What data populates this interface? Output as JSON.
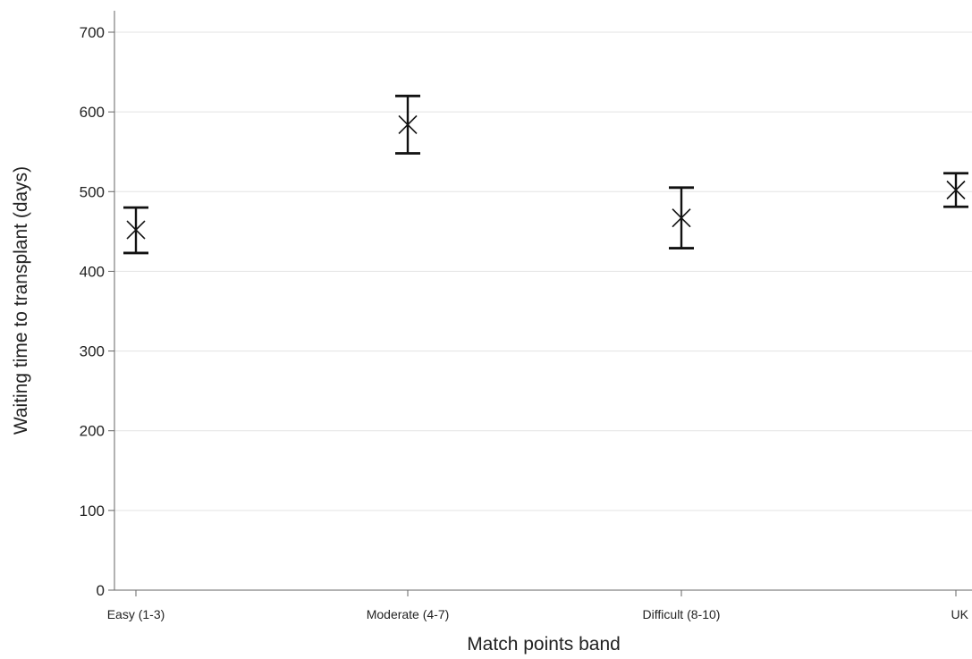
{
  "chart_data": {
    "type": "scatter",
    "title": "",
    "xlabel": "Match points band",
    "ylabel": "Waiting time to transplant (days)",
    "categories": [
      "Easy (1-3)",
      "Moderate (4-7)",
      "Difficult (8-10)",
      "UK"
    ],
    "points": [
      {
        "category": "Easy (1-3)",
        "estimate": 452,
        "lower": 423,
        "upper": 480
      },
      {
        "category": "Moderate (4-7)",
        "estimate": 584,
        "lower": 548,
        "upper": 620
      },
      {
        "category": "Difficult (8-10)",
        "estimate": 467,
        "lower": 429,
        "upper": 505
      },
      {
        "category": "UK",
        "estimate": 502,
        "lower": 481,
        "upper": 523
      }
    ],
    "yticks": [
      0,
      100,
      200,
      300,
      400,
      500,
      600,
      700
    ],
    "ylim": [
      0,
      700
    ],
    "grid": "horizontal",
    "legend": "none",
    "marker": "x",
    "colors": {
      "marks": "#111111",
      "grid": "#e3e3e3",
      "axis": "#666666",
      "text": "#222222"
    }
  }
}
